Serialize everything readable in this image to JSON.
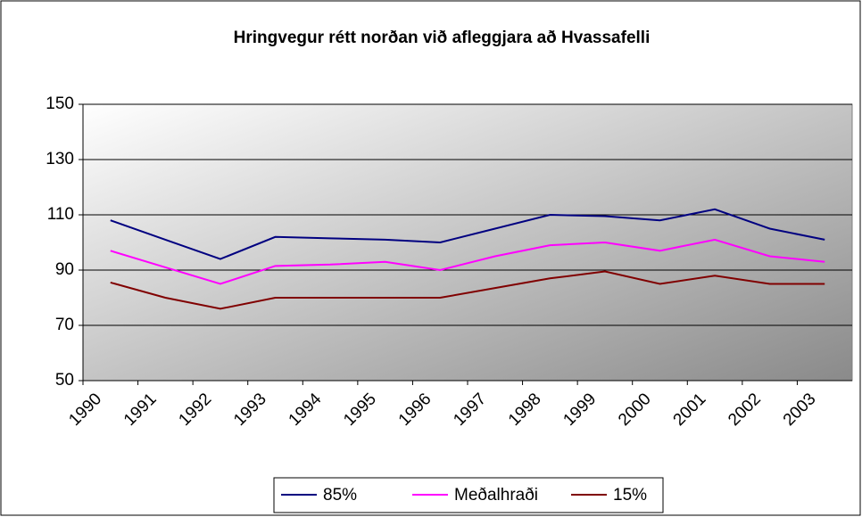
{
  "chart_data": {
    "type": "line",
    "title": "Hringvegur rétt norðan við afleggjara að Hvassafelli",
    "categories": [
      "1990",
      "1991",
      "1992",
      "1993",
      "1994",
      "1995",
      "1996",
      "1997",
      "1998",
      "1999",
      "2000",
      "2001",
      "2002",
      "2003"
    ],
    "series": [
      {
        "name": "85%",
        "color": "#000080",
        "values": [
          108,
          101,
          94,
          102,
          101.5,
          101,
          100,
          105,
          110,
          109.5,
          108,
          112,
          105,
          101
        ]
      },
      {
        "name": "Meðalhraði",
        "color": "#ff00ff",
        "values": [
          97,
          91,
          85,
          91.5,
          92,
          93,
          90,
          95,
          99,
          100,
          97,
          101,
          95,
          93
        ]
      },
      {
        "name": "15%",
        "color": "#800000",
        "values": [
          85.5,
          80,
          76,
          80,
          80,
          80,
          80,
          83.5,
          87,
          89.5,
          85,
          88,
          85,
          85
        ]
      }
    ],
    "ylim": [
      50,
      150
    ],
    "yticks": [
      50,
      70,
      90,
      110,
      130,
      150
    ],
    "grid": true,
    "legend": "bottom"
  }
}
